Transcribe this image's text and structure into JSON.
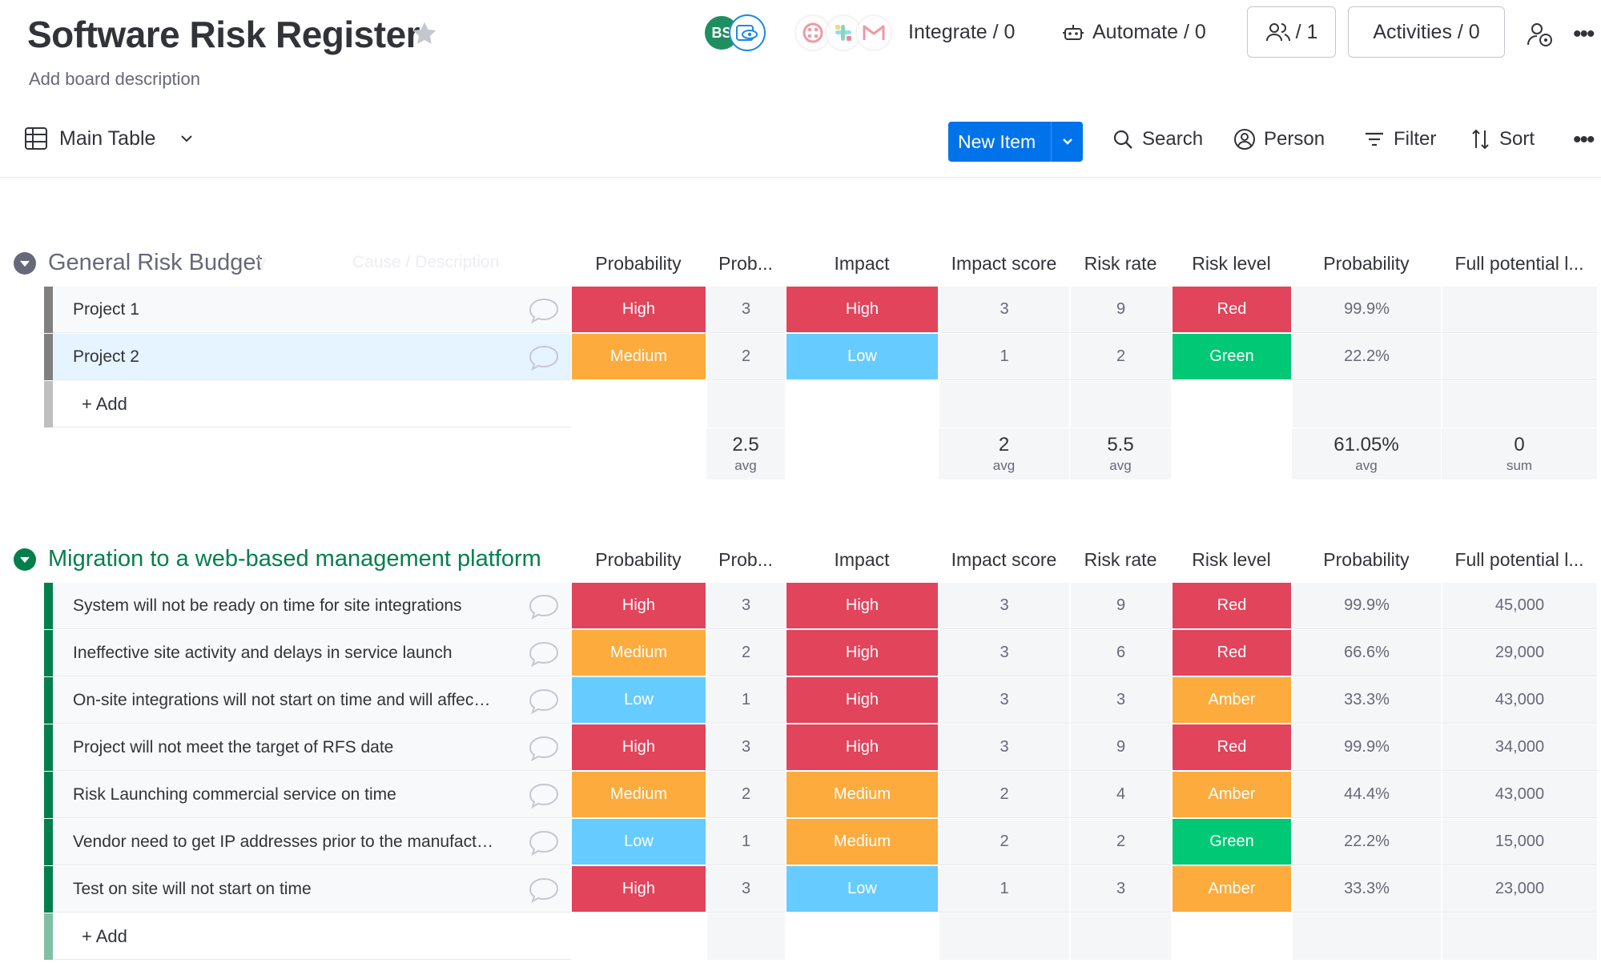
{
  "board": {
    "title": "Software Risk Register",
    "description": "Add board description"
  },
  "header": {
    "avatar_initials": "BS",
    "integrate_label": "Integrate / 0",
    "automate_label": "Automate / 0",
    "members_label": "/ 1",
    "activities_label": "Activities / 0"
  },
  "toolbar": {
    "view_label": "Main Table",
    "new_item_label": "New Item",
    "search_label": "Search",
    "person_label": "Person",
    "filter_label": "Filter",
    "sort_label": "Sort"
  },
  "columns": [
    "Probability",
    "Prob...",
    "Impact",
    "Impact score",
    "Risk rate",
    "Risk level",
    "Probability",
    "Full potential l..."
  ],
  "status_colors": {
    "High": "#e2445c",
    "Medium": "#fdab3d",
    "Low": "#66ccff",
    "Red": "#e2445c",
    "Green": "#00c875",
    "Amber": "#fdab3d"
  },
  "groups": [
    {
      "title": "General Risk Budget",
      "title_color": "#676879",
      "bar_color": "#808080",
      "ghost_texts": [
        "y",
        "Cause / Description"
      ],
      "add_label": "+ Add",
      "rows": [
        {
          "name": "Project 1",
          "probability": "High",
          "prob_score": "3",
          "impact": "High",
          "impact_score": "3",
          "risk_rate": "9",
          "risk_level": "Red",
          "probability_pct": "99.9%",
          "full_potential": ""
        },
        {
          "name": "Project 2",
          "probability": "Medium",
          "prob_score": "2",
          "impact": "Low",
          "impact_score": "1",
          "risk_rate": "2",
          "risk_level": "Green",
          "probability_pct": "22.2%",
          "full_potential": "",
          "selected": true
        }
      ],
      "summary": {
        "prob_score": {
          "value": "2.5",
          "fn": "avg"
        },
        "impact_score": {
          "value": "2",
          "fn": "avg"
        },
        "risk_rate": {
          "value": "5.5",
          "fn": "avg"
        },
        "probability_pct": {
          "value": "61.05%",
          "fn": "avg"
        },
        "full_potential": {
          "value": "0",
          "fn": "sum"
        }
      }
    },
    {
      "title": "Migration to a web-based management platform",
      "title_color": "#037f4c",
      "bar_color": "#037f4c",
      "ghost_texts": [],
      "add_label": "+ Add",
      "rows": [
        {
          "name": "System will not be ready on time for site integrations",
          "probability": "High",
          "prob_score": "3",
          "impact": "High",
          "impact_score": "3",
          "risk_rate": "9",
          "risk_level": "Red",
          "probability_pct": "99.9%",
          "full_potential": "45,000"
        },
        {
          "name": "Ineffective site activity and delays in service launch",
          "probability": "Medium",
          "prob_score": "2",
          "impact": "High",
          "impact_score": "3",
          "risk_rate": "6",
          "risk_level": "Red",
          "probability_pct": "66.6%",
          "full_potential": "29,000"
        },
        {
          "name": "On-site integrations will not start on time and will affect l...",
          "probability": "Low",
          "prob_score": "1",
          "impact": "High",
          "impact_score": "3",
          "risk_rate": "3",
          "risk_level": "Amber",
          "probability_pct": "33.3%",
          "full_potential": "43,000"
        },
        {
          "name": "Project will not meet the target of RFS date",
          "probability": "High",
          "prob_score": "3",
          "impact": "High",
          "impact_score": "3",
          "risk_rate": "9",
          "risk_level": "Red",
          "probability_pct": "99.9%",
          "full_potential": "34,000"
        },
        {
          "name": "Risk Launching commercial service on time",
          "probability": "Medium",
          "prob_score": "2",
          "impact": "Medium",
          "impact_score": "2",
          "risk_rate": "4",
          "risk_level": "Amber",
          "probability_pct": "44.4%",
          "full_potential": "43,000"
        },
        {
          "name": "Vendor need to get IP addresses prior to the manufacturi...",
          "probability": "Low",
          "prob_score": "1",
          "impact": "Medium",
          "impact_score": "2",
          "risk_rate": "2",
          "risk_level": "Green",
          "probability_pct": "22.2%",
          "full_potential": "15,000"
        },
        {
          "name": "Test on site will not start on time",
          "probability": "High",
          "prob_score": "3",
          "impact": "Low",
          "impact_score": "1",
          "risk_rate": "3",
          "risk_level": "Amber",
          "probability_pct": "33.3%",
          "full_potential": "23,000"
        }
      ]
    }
  ]
}
